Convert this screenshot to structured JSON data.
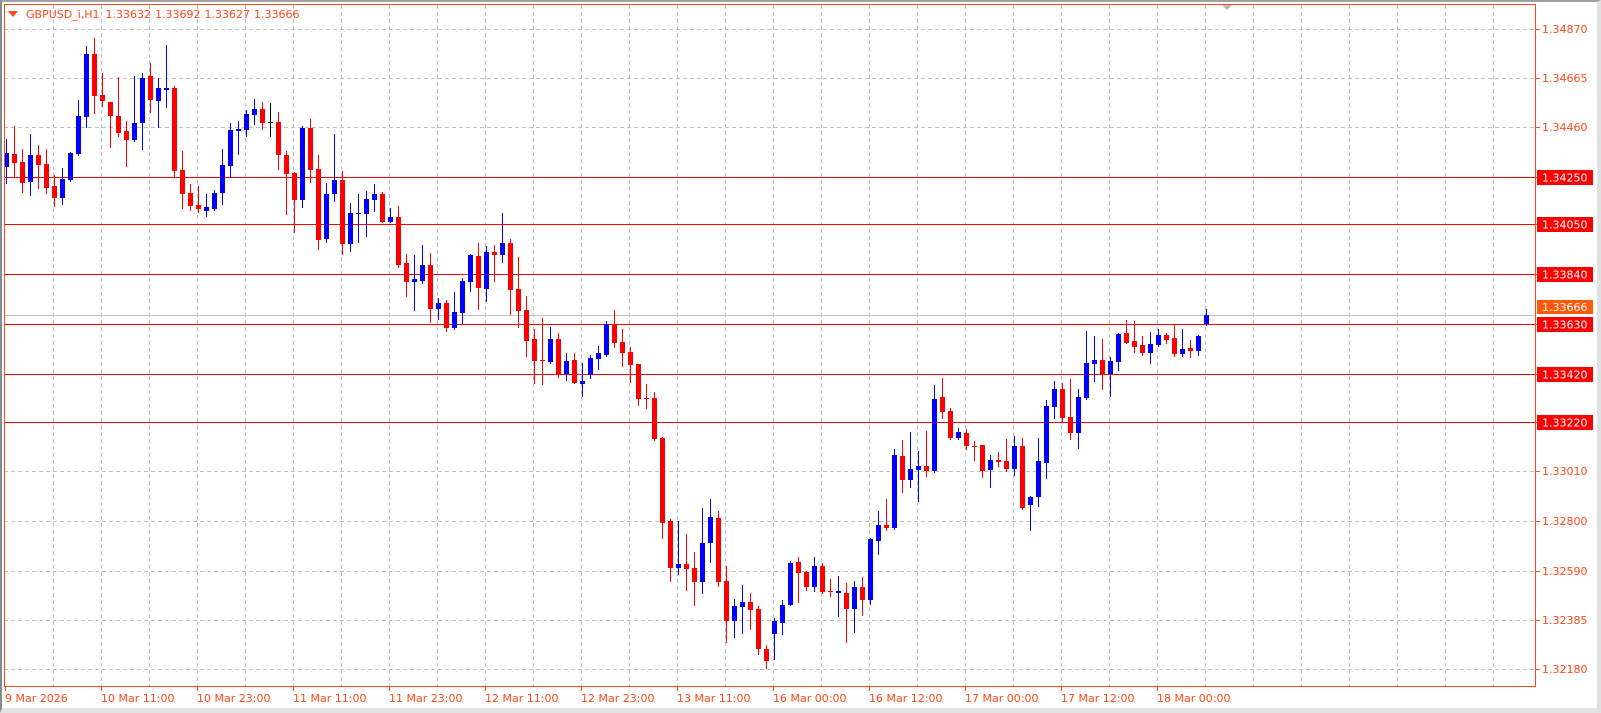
{
  "header": {
    "symbol_timeframe": "GBPUSD_i,H1",
    "open": "1.33632",
    "high": "1.33692",
    "low": "1.33627",
    "close": "1.33666",
    "menu_icon": "triangle-down-icon"
  },
  "colors": {
    "frame": "#FF4A1A",
    "axis_text": "#FF4A1A",
    "grid": "#C0C0C0",
    "bull": "#0000FF",
    "bear": "#FF0000",
    "doji": "#000000",
    "level_line": "#FF0000",
    "level_label_bg": "#FF0000",
    "current_price_bg": "#FF5A0A",
    "current_price_line": "#C0C0C0"
  },
  "chart_data": {
    "type": "candlestick",
    "title": "GBPUSD_i,H1",
    "grid": true,
    "ylim": [
      1.3218,
      1.3487
    ],
    "time_labels": [
      "9 Mar 2026",
      "10 Mar 11:00",
      "10 Mar 23:00",
      "11 Mar 11:00",
      "11 Mar 23:00",
      "12 Mar 11:00",
      "12 Mar 23:00",
      "13 Mar 11:00",
      "16 Mar 00:00",
      "16 Mar 12:00",
      "17 Mar 00:00",
      "17 Mar 12:00",
      "18 Mar 00:00"
    ],
    "bars_per_time_label": 12,
    "price_labels": [
      "1.34870",
      "1.34665",
      "1.34460",
      "1.34250",
      "1.34050",
      "1.33840",
      "1.33630",
      "1.33420",
      "1.33220",
      "1.33010",
      "1.32800",
      "1.32590",
      "1.32385",
      "1.32180"
    ],
    "levels": [
      "1.34250",
      "1.34050",
      "1.33840",
      "1.33630",
      "1.33420",
      "1.33220"
    ],
    "current_price": "1.33666",
    "candles_ohlc": [
      [
        1.3429,
        1.34408,
        1.34223,
        1.34349
      ],
      [
        1.34345,
        1.34463,
        1.34248,
        1.34307
      ],
      [
        1.34311,
        1.34366,
        1.34185,
        1.34223
      ],
      [
        1.34227,
        1.34429,
        1.34172,
        1.3434
      ],
      [
        1.3434,
        1.34383,
        1.34202,
        1.34298
      ],
      [
        1.34303,
        1.34366,
        1.34181,
        1.34202
      ],
      [
        1.3421,
        1.34256,
        1.34126,
        1.34159
      ],
      [
        1.34159,
        1.34286,
        1.34134,
        1.34239
      ],
      [
        1.34235,
        1.34353,
        1.34231,
        1.34349
      ],
      [
        1.34345,
        1.34572,
        1.3434,
        1.34505
      ],
      [
        1.345,
        1.34799,
        1.34458,
        1.34766
      ],
      [
        1.34766,
        1.34833,
        1.34517,
        1.34589
      ],
      [
        1.34593,
        1.34686,
        1.34547,
        1.34568
      ],
      [
        1.34564,
        1.34566,
        1.34374,
        1.34505
      ],
      [
        1.34505,
        1.34669,
        1.3442,
        1.34433
      ],
      [
        1.34442,
        1.34484,
        1.34294,
        1.34404
      ],
      [
        1.34404,
        1.34673,
        1.344,
        1.34475
      ],
      [
        1.34475,
        1.34686,
        1.34366,
        1.34665
      ],
      [
        1.34673,
        1.34728,
        1.34522,
        1.34572
      ],
      [
        1.34568,
        1.34665,
        1.34458,
        1.34623
      ],
      [
        1.34614,
        1.34804,
        1.34543,
        1.34623
      ],
      [
        1.34623,
        1.34631,
        1.34252,
        1.34273
      ],
      [
        1.34277,
        1.34357,
        1.34117,
        1.34176
      ],
      [
        1.34181,
        1.34218,
        1.34109,
        1.34126
      ],
      [
        1.3413,
        1.3421,
        1.34101,
        1.34113
      ],
      [
        1.34105,
        1.34176,
        1.34084,
        1.34122
      ],
      [
        1.34113,
        1.34193,
        1.3411,
        1.34181
      ],
      [
        1.34181,
        1.34366,
        1.34134,
        1.34298
      ],
      [
        1.34294,
        1.34475,
        1.34248,
        1.34446
      ],
      [
        1.34442,
        1.34484,
        1.34345,
        1.3445
      ],
      [
        1.34446,
        1.3453,
        1.3442,
        1.34513
      ],
      [
        1.34509,
        1.34576,
        1.34471,
        1.34534
      ],
      [
        1.34534,
        1.34564,
        1.3445,
        1.34475
      ],
      [
        1.34479,
        1.34559,
        1.3442,
        1.34479
      ],
      [
        1.34479,
        1.34522,
        1.34282,
        1.3434
      ],
      [
        1.3434,
        1.34357,
        1.34092,
        1.3426
      ],
      [
        1.34265,
        1.34268,
        1.34016,
        1.34151
      ],
      [
        1.34151,
        1.34463,
        1.34122,
        1.34454
      ],
      [
        1.34454,
        1.34492,
        1.34227,
        1.34277
      ],
      [
        1.34282,
        1.3434,
        1.33945,
        1.33983
      ],
      [
        1.33987,
        1.34223,
        1.33974,
        1.34176
      ],
      [
        1.34176,
        1.34429,
        1.34147,
        1.34235
      ],
      [
        1.34235,
        1.34273,
        1.33924,
        1.33966
      ],
      [
        1.33966,
        1.34138,
        1.33936,
        1.34096
      ],
      [
        1.34096,
        1.34176,
        1.33974,
        1.34098
      ],
      [
        1.34092,
        1.34189,
        1.33999,
        1.34155
      ],
      [
        1.34151,
        1.34218,
        1.34105,
        1.34176
      ],
      [
        1.34176,
        1.34185,
        1.34058,
        1.3406
      ],
      [
        1.3406,
        1.34117,
        1.34058,
        1.34079
      ],
      [
        1.34079,
        1.34126,
        1.33869,
        1.33877
      ],
      [
        1.33886,
        1.33924,
        1.33747,
        1.33806
      ],
      [
        1.33806,
        1.33919,
        1.33688,
        1.33818
      ],
      [
        1.3381,
        1.33962,
        1.33802,
        1.33877
      ],
      [
        1.33877,
        1.33928,
        1.33637,
        1.33692
      ],
      [
        1.33692,
        1.33738,
        1.3365,
        1.33717
      ],
      [
        1.33717,
        1.3373,
        1.336,
        1.33612
      ],
      [
        1.33612,
        1.33764,
        1.33608,
        1.3368
      ],
      [
        1.33675,
        1.33823,
        1.33633,
        1.3381
      ],
      [
        1.33806,
        1.33924,
        1.33768,
        1.33922
      ],
      [
        1.33915,
        1.3397,
        1.33692,
        1.33781
      ],
      [
        1.33776,
        1.33957,
        1.33726,
        1.33932
      ],
      [
        1.33932,
        1.33962,
        1.3381,
        1.33919
      ],
      [
        1.33919,
        1.34096,
        1.3389,
        1.3397
      ],
      [
        1.3397,
        1.33987,
        1.33671,
        1.33772
      ],
      [
        1.33776,
        1.33911,
        1.33616,
        1.33684
      ],
      [
        1.33688,
        1.33747,
        1.33494,
        1.33557
      ],
      [
        1.33566,
        1.33608,
        1.33381,
        1.33473
      ],
      [
        1.33477,
        1.33654,
        1.33376,
        1.33475
      ],
      [
        1.33469,
        1.33616,
        1.33465,
        1.33566
      ],
      [
        1.33566,
        1.33591,
        1.33406,
        1.33414
      ],
      [
        1.33418,
        1.33507,
        1.33393,
        1.33473
      ],
      [
        1.33477,
        1.33507,
        1.33381,
        1.33383
      ],
      [
        1.33376,
        1.33465,
        1.33326,
        1.33389
      ],
      [
        1.33414,
        1.33498,
        1.33402,
        1.33486
      ],
      [
        1.33482,
        1.33536,
        1.3344,
        1.33507
      ],
      [
        1.33498,
        1.33642,
        1.33494,
        1.33629
      ],
      [
        1.33625,
        1.33688,
        1.33532,
        1.33549
      ],
      [
        1.33553,
        1.33608,
        1.33452,
        1.33507
      ],
      [
        1.33511,
        1.33532,
        1.33385,
        1.33456
      ],
      [
        1.33461,
        1.33463,
        1.33288,
        1.33313
      ],
      [
        1.33317,
        1.33376,
        1.33275,
        1.33315
      ],
      [
        1.33317,
        1.33343,
        1.33141,
        1.33145
      ],
      [
        1.33149,
        1.33153,
        1.32732,
        1.32791
      ],
      [
        1.328,
        1.32808,
        1.32547,
        1.32602
      ],
      [
        1.32602,
        1.328,
        1.32577,
        1.32619
      ],
      [
        1.32619,
        1.32745,
        1.32513,
        1.32598
      ],
      [
        1.32602,
        1.32673,
        1.3245,
        1.32543
      ],
      [
        1.32543,
        1.32858,
        1.32497,
        1.32707
      ],
      [
        1.32707,
        1.32896,
        1.32631,
        1.32817
      ],
      [
        1.32812,
        1.32842,
        1.3253,
        1.32543
      ],
      [
        1.32547,
        1.32614,
        1.32294,
        1.32379
      ],
      [
        1.32379,
        1.32475,
        1.32315,
        1.32442
      ],
      [
        1.32438,
        1.32534,
        1.32329,
        1.32459
      ],
      [
        1.32459,
        1.32497,
        1.32345,
        1.32429
      ],
      [
        1.32433,
        1.32442,
        1.3224,
        1.32265
      ],
      [
        1.32261,
        1.32278,
        1.32181,
        1.32214
      ],
      [
        1.32328,
        1.32395,
        1.32219,
        1.32379
      ],
      [
        1.32374,
        1.32471,
        1.32328,
        1.3245
      ],
      [
        1.3245,
        1.32635,
        1.32448,
        1.32623
      ],
      [
        1.32627,
        1.32652,
        1.32459,
        1.32581
      ],
      [
        1.32585,
        1.32593,
        1.32513,
        1.32522
      ],
      [
        1.32522,
        1.32652,
        1.32505,
        1.32614
      ],
      [
        1.32614,
        1.32623,
        1.32497,
        1.32501
      ],
      [
        1.32505,
        1.32556,
        1.32484,
        1.32503
      ],
      [
        1.32497,
        1.32568,
        1.324,
        1.32505
      ],
      [
        1.32497,
        1.32539,
        1.32294,
        1.32433
      ],
      [
        1.32433,
        1.32547,
        1.32336,
        1.32522
      ],
      [
        1.32522,
        1.32564,
        1.32408,
        1.32471
      ],
      [
        1.32471,
        1.32732,
        1.32454,
        1.32724
      ],
      [
        1.32717,
        1.32842,
        1.32661,
        1.32783
      ],
      [
        1.32783,
        1.32896,
        1.32762,
        1.3277
      ],
      [
        1.3277,
        1.33103,
        1.32768,
        1.33077
      ],
      [
        1.33073,
        1.33141,
        1.32922,
        1.32972
      ],
      [
        1.32972,
        1.33174,
        1.32943,
        1.33019
      ],
      [
        1.33015,
        1.33094,
        1.32884,
        1.33031
      ],
      [
        1.33031,
        1.33178,
        1.32989,
        1.3301
      ],
      [
        1.3301,
        1.33372,
        1.33008,
        1.33313
      ],
      [
        1.33322,
        1.33402,
        1.33233,
        1.33258
      ],
      [
        1.33263,
        1.33275,
        1.33147,
        1.33149
      ],
      [
        1.33149,
        1.33191,
        1.33147,
        1.33174
      ],
      [
        1.3317,
        1.33187,
        1.33103,
        1.33115
      ],
      [
        1.33115,
        1.33136,
        1.3306,
        1.33113
      ],
      [
        1.3312,
        1.33122,
        1.32985,
        1.3301
      ],
      [
        1.33015,
        1.33077,
        1.32943,
        1.3306
      ],
      [
        1.3306,
        1.3309,
        1.33031,
        1.33048
      ],
      [
        1.33052,
        1.33145,
        1.3301,
        1.33019
      ],
      [
        1.33019,
        1.33157,
        1.32993,
        1.33115
      ],
      [
        1.33115,
        1.33149,
        1.32854,
        1.32858
      ],
      [
        1.32867,
        1.32905,
        1.32762,
        1.32903
      ],
      [
        1.32901,
        1.33149,
        1.32863,
        1.33052
      ],
      [
        1.33044,
        1.33309,
        1.32981,
        1.33284
      ],
      [
        1.3328,
        1.33389,
        1.33233,
        1.33356
      ],
      [
        1.33356,
        1.33381,
        1.33221,
        1.33233
      ],
      [
        1.33237,
        1.33397,
        1.33145,
        1.3317
      ],
      [
        1.3317,
        1.33356,
        1.33107,
        1.33322
      ],
      [
        1.33317,
        1.336,
        1.33315,
        1.33465
      ],
      [
        1.33461,
        1.33581,
        1.33389,
        1.33477
      ],
      [
        1.33477,
        1.33566,
        1.33356,
        1.3342
      ],
      [
        1.3342,
        1.3349,
        1.33326,
        1.33473
      ],
      [
        1.33469,
        1.33591,
        1.33436,
        1.33587
      ],
      [
        1.33591,
        1.33646,
        1.33549,
        1.33549
      ],
      [
        1.33557,
        1.33642,
        1.33511,
        1.33532
      ],
      [
        1.33541,
        1.33581,
        1.33498,
        1.33507
      ],
      [
        1.33507,
        1.33595,
        1.33465,
        1.33545
      ],
      [
        1.33541,
        1.33608,
        1.33539,
        1.33583
      ],
      [
        1.33583,
        1.33591,
        1.33549,
        1.33562
      ],
      [
        1.3357,
        1.33625,
        1.33494,
        1.33503
      ],
      [
        1.33503,
        1.33608,
        1.33494,
        1.33524
      ],
      [
        1.33528,
        1.33562,
        1.3349,
        1.33516
      ],
      [
        1.33516,
        1.33583,
        1.33498,
        1.33578
      ],
      [
        1.33632,
        1.33692,
        1.33627,
        1.33666
      ]
    ]
  }
}
